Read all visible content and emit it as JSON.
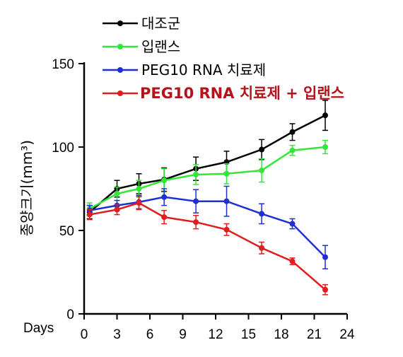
{
  "chart_data": {
    "type": "line",
    "xlabel": "Days",
    "ylabel": "종양크기(mm³)",
    "xlim": [
      0,
      24
    ],
    "ylim": [
      0,
      150
    ],
    "xticks": [
      0,
      3,
      6,
      9,
      12,
      15,
      18,
      21,
      24
    ],
    "yticks": [
      0,
      50,
      100,
      150
    ],
    "grid": false,
    "legend_position": "top",
    "series": [
      {
        "name": "대조군",
        "color": "#000000",
        "x": [
          0.5,
          3,
          5,
          7.3,
          10.2,
          13,
          16.2,
          19,
          22
        ],
        "y": [
          61,
          75,
          78,
          80.5,
          87,
          91,
          98.5,
          109,
          119
        ],
        "err": [
          4,
          5,
          6,
          7,
          7,
          6.5,
          6,
          5,
          9
        ]
      },
      {
        "name": "입랜스",
        "color": "#33e63a",
        "x": [
          0.5,
          3,
          5,
          7.3,
          10.2,
          13,
          16.2,
          19,
          22
        ],
        "y": [
          63,
          72,
          75,
          80,
          83.5,
          84,
          86,
          98,
          100
        ],
        "err": [
          3.5,
          4,
          5,
          7,
          6,
          6,
          7,
          3,
          4
        ]
      },
      {
        "name": "PEG10 RNA 치료제",
        "color": "#1f2fd1",
        "x": [
          0.5,
          3,
          5,
          7.3,
          10.2,
          13,
          16.2,
          19,
          22
        ],
        "y": [
          62,
          65,
          67,
          70,
          67.5,
          67.5,
          60,
          54,
          34
        ],
        "err": [
          3,
          3,
          4,
          5,
          7,
          9,
          6,
          3,
          7
        ]
      },
      {
        "name": "PEG10 RNA 치료제 + 입랜스",
        "color": "#e01d1d",
        "x": [
          0.5,
          3,
          5,
          7.3,
          10.2,
          13,
          16.2,
          19,
          22
        ],
        "y": [
          59.5,
          62.5,
          66.5,
          58,
          55,
          50.5,
          39.5,
          31.5,
          14.5
        ],
        "err": [
          3,
          3,
          4,
          4,
          4,
          3.5,
          3.5,
          2,
          3
        ]
      }
    ],
    "legend_label_suffix": "+ 입랜스"
  }
}
